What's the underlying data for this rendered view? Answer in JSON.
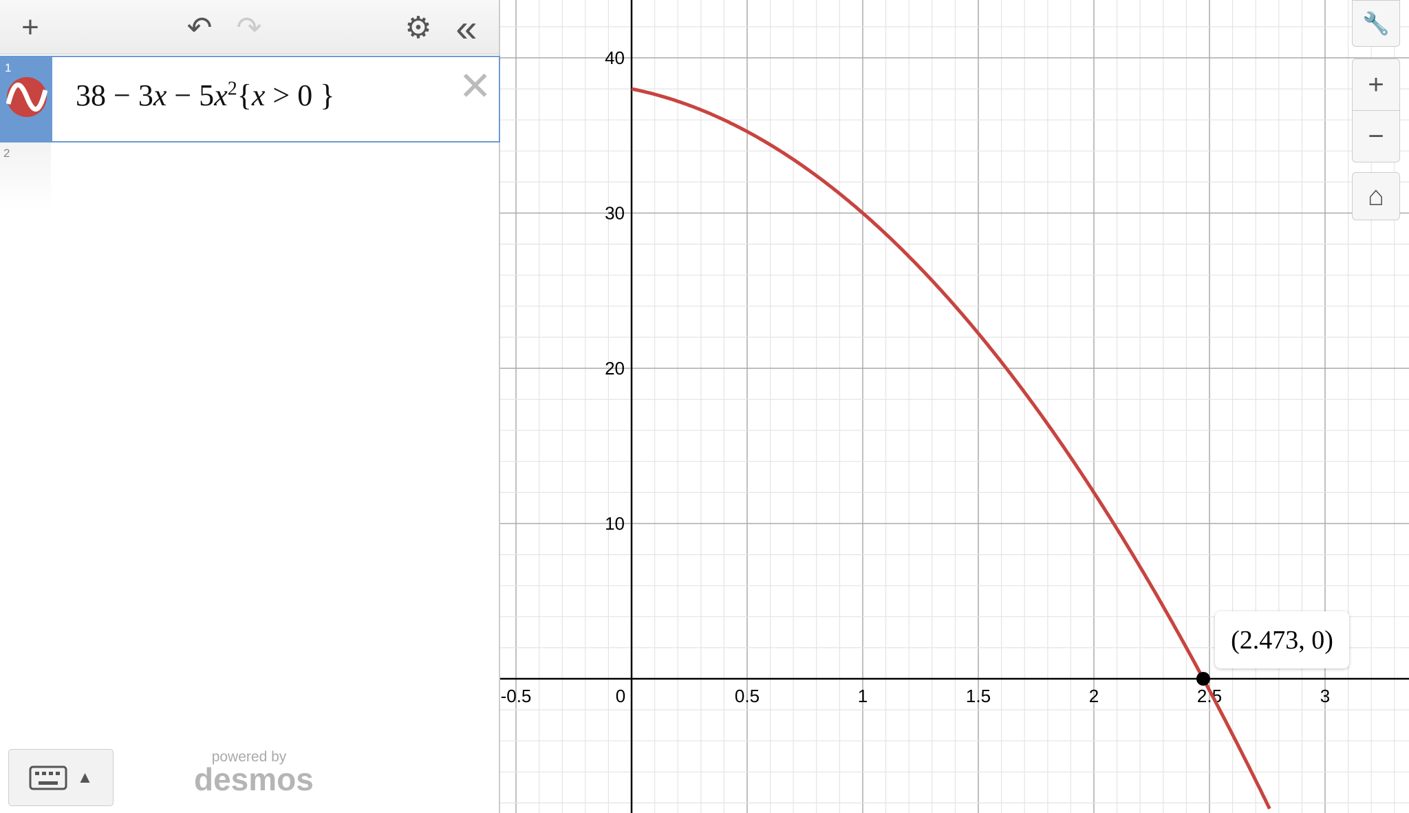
{
  "toolbar": {
    "add": "+",
    "undo": "↶",
    "redo": "↷",
    "settings": "⚙",
    "collapse": "«"
  },
  "expressions": [
    {
      "index": "1",
      "parts": {
        "a": "38 − 3",
        "x1": "x",
        "b": " − 5",
        "x2": "x",
        "sup": "2",
        "c": "{",
        "x3": "x",
        "d": " > 0 }"
      },
      "color": "#c74440",
      "icon": "sine-wave-icon"
    },
    {
      "index": "2"
    }
  ],
  "footer": {
    "powered": "powered by",
    "brand": "desmos",
    "keyboard_caret": "▲"
  },
  "graph_controls": {
    "wrench": "🔧",
    "zoom_in": "+",
    "zoom_out": "−",
    "home": "⌂"
  },
  "point_label": "(2.473, 0)",
  "chart_data": {
    "type": "line",
    "function": "38 - 3x - 5x^2 {x > 0}",
    "xlim": [
      -0.57,
      3.36
    ],
    "ylim": [
      -8.6,
      43.7
    ],
    "x_ticks": [
      "-0.5",
      "0",
      "0.5",
      "1",
      "1.5",
      "2",
      "2.5",
      "3"
    ],
    "y_ticks": [
      "10",
      "20",
      "30",
      "40"
    ],
    "grid": true,
    "series_color": "#c74440",
    "points": [
      {
        "x": 2.473,
        "y": 0
      }
    ]
  }
}
